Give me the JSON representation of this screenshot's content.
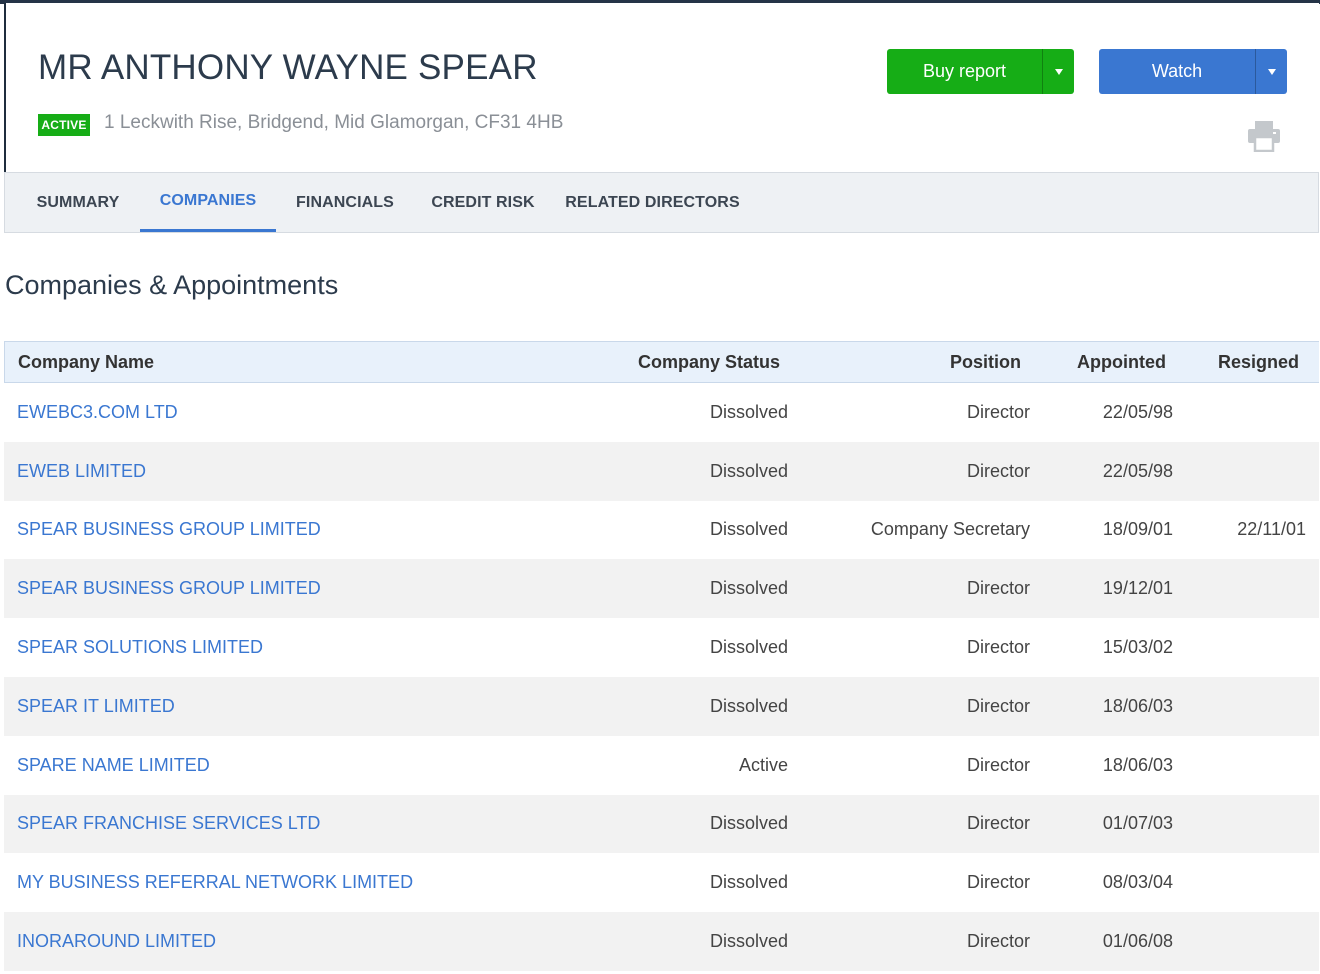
{
  "header": {
    "name": "MR ANTHONY WAYNE SPEAR",
    "status": "ACTIVE",
    "address": "1 Leckwith Rise, Bridgend, Mid Glamorgan, CF31 4HB",
    "buy_label": "Buy report",
    "watch_label": "Watch",
    "print_icon": "printer-icon",
    "colors": {
      "buy": "#16ad16",
      "watch": "#3a77d1",
      "active_badge": "#16ad16"
    }
  },
  "tabs": [
    {
      "label": "SUMMARY",
      "active": false
    },
    {
      "label": "COMPANIES",
      "active": true
    },
    {
      "label": "FINANCIALS",
      "active": false
    },
    {
      "label": "CREDIT RISK",
      "active": false
    },
    {
      "label": "RELATED DIRECTORS",
      "active": false
    }
  ],
  "section": {
    "title": "Companies & Appointments"
  },
  "table": {
    "headers": {
      "company_name": "Company Name",
      "company_status": "Company Status",
      "position": "Position",
      "appointed": "Appointed",
      "resigned": "Resigned"
    },
    "rows": [
      {
        "name": "EWEBC3.COM LTD",
        "status": "Dissolved",
        "position": "Director",
        "appointed": "22/05/98",
        "resigned": ""
      },
      {
        "name": "EWEB LIMITED",
        "status": "Dissolved",
        "position": "Director",
        "appointed": "22/05/98",
        "resigned": ""
      },
      {
        "name": "SPEAR BUSINESS GROUP LIMITED",
        "status": "Dissolved",
        "position": "Company Secretary",
        "appointed": "18/09/01",
        "resigned": "22/11/01"
      },
      {
        "name": "SPEAR BUSINESS GROUP LIMITED",
        "status": "Dissolved",
        "position": "Director",
        "appointed": "19/12/01",
        "resigned": ""
      },
      {
        "name": "SPEAR SOLUTIONS LIMITED",
        "status": "Dissolved",
        "position": "Director",
        "appointed": "15/03/02",
        "resigned": ""
      },
      {
        "name": "SPEAR IT LIMITED",
        "status": "Dissolved",
        "position": "Director",
        "appointed": "18/06/03",
        "resigned": ""
      },
      {
        "name": "SPARE NAME LIMITED",
        "status": "Active",
        "position": "Director",
        "appointed": "18/06/03",
        "resigned": ""
      },
      {
        "name": "SPEAR FRANCHISE SERVICES LTD",
        "status": "Dissolved",
        "position": "Director",
        "appointed": "01/07/03",
        "resigned": ""
      },
      {
        "name": "MY BUSINESS REFERRAL NETWORK LIMITED",
        "status": "Dissolved",
        "position": "Director",
        "appointed": "08/03/04",
        "resigned": ""
      },
      {
        "name": "INORAROUND LIMITED",
        "status": "Dissolved",
        "position": "Director",
        "appointed": "01/06/08",
        "resigned": ""
      }
    ]
  }
}
